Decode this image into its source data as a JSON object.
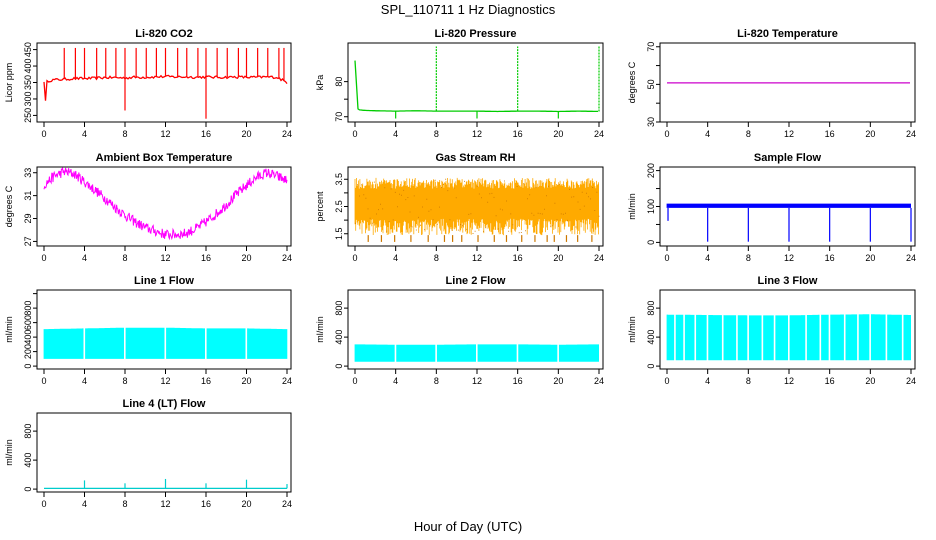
{
  "figure": {
    "title": "SPL_110711  1 Hz Diagnostics",
    "xlabel": "Hour of Day (UTC)"
  },
  "chart_data": [
    {
      "type": "line",
      "title": "Li-820 CO2",
      "ylabel": "Licor ppm",
      "xlim": [
        0,
        24
      ],
      "xticks": [
        0,
        4,
        8,
        12,
        16,
        20,
        24
      ],
      "ylim": [
        230,
        470
      ],
      "yticks": [
        250,
        300,
        350,
        400,
        450
      ],
      "color": "#ff0000",
      "series": [
        {
          "x": [
            0,
            0.2,
            0.3,
            1,
            2,
            3,
            4,
            5,
            6,
            7,
            8,
            9,
            10,
            11,
            12,
            13,
            14,
            15,
            16,
            17,
            18,
            19,
            20,
            21,
            22,
            23,
            24
          ],
          "y": [
            355,
            270,
            355,
            358,
            360,
            362,
            362,
            363,
            365,
            365,
            364,
            366,
            366,
            367,
            368,
            367,
            367,
            366,
            367,
            366,
            366,
            367,
            366,
            366,
            367,
            366,
            350
          ]
        }
      ],
      "spikes": {
        "up_x": [
          2,
          3.1,
          4,
          5.2,
          6.1,
          7.1,
          8,
          9.1,
          10.1,
          11.1,
          12,
          13.2,
          14.1,
          15.2,
          16,
          17.1,
          18.1,
          19.2,
          20,
          21.1,
          22.1,
          23.2,
          23.7
        ],
        "up_y": 455,
        "down_x": [
          8,
          16
        ],
        "down_y": [
          265,
          240
        ]
      }
    },
    {
      "type": "line",
      "title": "Li-820 Pressure",
      "ylabel": "kPa",
      "xlim": [
        0,
        24
      ],
      "xticks": [
        0,
        4,
        8,
        12,
        16,
        20,
        24
      ],
      "ylim": [
        68.5,
        91
      ],
      "yticks": [
        70,
        75,
        80
      ],
      "yticklabels": [
        "70",
        "",
        "80"
      ],
      "color": "#00cc00",
      "series": [
        {
          "x": [
            0,
            0.3,
            1,
            2,
            4,
            6,
            8,
            10,
            12,
            14,
            16,
            18,
            20,
            22,
            24
          ],
          "y": [
            86,
            72,
            71.8,
            71.7,
            71.6,
            71.7,
            71.6,
            71.6,
            71.6,
            71.5,
            71.6,
            71.6,
            71.5,
            71.6,
            71.5
          ]
        }
      ],
      "spikes": {
        "up_x": [
          8,
          16,
          24
        ],
        "up_y": 90,
        "down_x": [
          4,
          12,
          20
        ],
        "down_y": [
          69.5,
          69.5,
          69.5
        ]
      }
    },
    {
      "type": "line",
      "title": "Li-820 Temperature",
      "ylabel": "degrees C",
      "xlim": [
        0,
        24
      ],
      "xticks": [
        0,
        4,
        8,
        12,
        16,
        20,
        24
      ],
      "ylim": [
        30,
        72
      ],
      "yticks": [
        30,
        40,
        50,
        60,
        70
      ],
      "yticklabels": [
        "30",
        "",
        "50",
        "",
        "70"
      ],
      "color": "#cc00cc",
      "series": [
        {
          "x": [
            0,
            24
          ],
          "y": [
            50.8,
            50.8
          ]
        }
      ]
    },
    {
      "type": "line",
      "title": "Ambient Box Temperature",
      "ylabel": "degrees C",
      "xlim": [
        0,
        24
      ],
      "xticks": [
        0,
        4,
        8,
        12,
        16,
        20,
        24
      ],
      "ylim": [
        26.6,
        33.5
      ],
      "yticks": [
        27,
        29,
        31,
        33
      ],
      "color": "#ff00ff",
      "series": [
        {
          "x": [
            0,
            1,
            2,
            3,
            4,
            5,
            6,
            7,
            8,
            9,
            10,
            11,
            12,
            13,
            14,
            15,
            16,
            17,
            18,
            19,
            20,
            21,
            22,
            23,
            24
          ],
          "y": [
            31.9,
            32.7,
            33.1,
            32.9,
            32.2,
            31.5,
            30.8,
            30.0,
            29.3,
            28.7,
            28.2,
            27.9,
            27.6,
            27.6,
            27.7,
            28.1,
            28.7,
            29.4,
            30.2,
            31.1,
            31.9,
            32.6,
            33.0,
            32.7,
            32.3
          ]
        }
      ],
      "band": 0.45
    },
    {
      "type": "line",
      "title": "Gas Stream RH",
      "ylabel": "percent",
      "xlim": [
        0,
        24
      ],
      "xticks": [
        0,
        4,
        8,
        12,
        16,
        20,
        24
      ],
      "ylim": [
        1.05,
        3.95
      ],
      "yticks": [
        1.5,
        2,
        2.5,
        3,
        3.5
      ],
      "yticklabels": [
        "1.5",
        "",
        "2.5",
        "",
        "3.5"
      ],
      "color": "#cc7700",
      "fill": "#ffaa00",
      "series": [
        {
          "x": [
            0,
            24
          ],
          "y_low": [
            1.45,
            1.45
          ],
          "y_high": [
            3.55,
            3.55
          ]
        }
      ],
      "dips_x": [
        1.3,
        2.6,
        3.9,
        5.5,
        7.2,
        8.8,
        9.6,
        10.5,
        12.1,
        13.7,
        14.9,
        16.4,
        17.7,
        18.9,
        19.6,
        20.8,
        21.9,
        23.3
      ],
      "dips_y": 1.2
    },
    {
      "type": "line",
      "title": "Sample Flow",
      "ylabel": "ml/min",
      "xlim": [
        0,
        24
      ],
      "xticks": [
        0,
        4,
        8,
        12,
        16,
        20,
        24
      ],
      "ylim": [
        -10,
        210
      ],
      "yticks": [
        0,
        50,
        100,
        150,
        200
      ],
      "yticklabels": [
        "0",
        "",
        "100",
        "",
        "200"
      ],
      "color": "#0000ff",
      "series": [
        {
          "x": [
            0,
            24
          ],
          "y_low": [
            96,
            96
          ],
          "y_high": [
            108,
            108
          ]
        }
      ],
      "dips_x": [
        0.1,
        4,
        8,
        12,
        16,
        20,
        24
      ],
      "dips_y": [
        60,
        2,
        2,
        2,
        2,
        2,
        2
      ]
    },
    {
      "type": "area",
      "title": "Line 1 Flow",
      "ylabel": "ml/min",
      "xlim": [
        0,
        24
      ],
      "xticks": [
        0,
        4,
        8,
        12,
        16,
        20,
        24
      ],
      "ylim": [
        -40,
        1050
      ],
      "yticks": [
        0,
        200,
        400,
        600,
        800,
        1000
      ],
      "yticklabels": [
        "0",
        "200",
        "400",
        "600",
        "800",
        ""
      ],
      "color": "#00ffff",
      "series": [
        {
          "x": [
            0,
            4,
            8,
            12,
            16,
            20,
            24
          ],
          "y_low": [
            100,
            100,
            100,
            100,
            100,
            100,
            100
          ],
          "y_high": [
            510,
            520,
            530,
            530,
            520,
            520,
            510
          ]
        }
      ],
      "gaps_x": [
        4,
        8,
        12,
        16,
        20
      ]
    },
    {
      "type": "area",
      "title": "Line 2 Flow",
      "ylabel": "ml/min",
      "xlim": [
        0,
        24
      ],
      "xticks": [
        0,
        4,
        8,
        12,
        16,
        20,
        24
      ],
      "ylim": [
        -40,
        1050
      ],
      "yticks": [
        0,
        200,
        400,
        600,
        800,
        1000
      ],
      "yticklabels": [
        "0",
        "400",
        "800"
      ],
      "ytickvalues": [
        0,
        400,
        800
      ],
      "color": "#00ffff",
      "series": [
        {
          "x": [
            0,
            4,
            8,
            12,
            16,
            20,
            24
          ],
          "y_low": [
            60,
            60,
            60,
            60,
            60,
            60,
            60
          ],
          "y_high": [
            300,
            295,
            295,
            300,
            300,
            295,
            300
          ]
        }
      ],
      "gaps_x": [
        4,
        8,
        12,
        16,
        20
      ]
    },
    {
      "type": "area",
      "title": "Line 3 Flow",
      "ylabel": "ml/min",
      "xlim": [
        0,
        24
      ],
      "xticks": [
        0,
        4,
        8,
        12,
        16,
        20,
        24
      ],
      "ylim": [
        -40,
        1050
      ],
      "yticks": [
        0,
        200,
        400,
        600,
        800,
        1000
      ],
      "yticklabels": [
        "0",
        "400",
        "800"
      ],
      "ytickvalues": [
        0,
        400,
        800
      ],
      "color": "#00ffff",
      "series": [
        {
          "x": [
            0,
            4,
            8,
            12,
            16,
            20,
            24
          ],
          "y_low": [
            80,
            80,
            80,
            80,
            80,
            80,
            80
          ],
          "y_high": [
            710,
            705,
            700,
            700,
            710,
            715,
            705
          ]
        }
      ],
      "gaps_x": [
        0.8,
        1.7,
        2.8,
        4,
        5.5,
        6.9,
        8,
        9.4,
        10.6,
        12,
        13.7,
        15.1,
        16,
        17.5,
        18.8,
        20,
        21.6,
        23.2
      ]
    },
    {
      "type": "line",
      "title": "Line 4 (LT) Flow",
      "ylabel": "ml/min",
      "xlim": [
        0,
        24
      ],
      "xticks": [
        0,
        4,
        8,
        12,
        16,
        20,
        24
      ],
      "ylim": [
        -40,
        1050
      ],
      "yticks": [
        0,
        200,
        400,
        600,
        800,
        1000
      ],
      "yticklabels": [
        "0",
        "400",
        "800"
      ],
      "ytickvalues": [
        0,
        400,
        800
      ],
      "color": "#00cccc",
      "series": [
        {
          "x": [
            0,
            24
          ],
          "y": [
            10,
            10
          ]
        }
      ],
      "spikes": {
        "up_x": [
          4,
          8,
          12,
          16,
          20,
          24
        ],
        "up_y": [
          120,
          80,
          140,
          80,
          130,
          70
        ]
      }
    }
  ]
}
